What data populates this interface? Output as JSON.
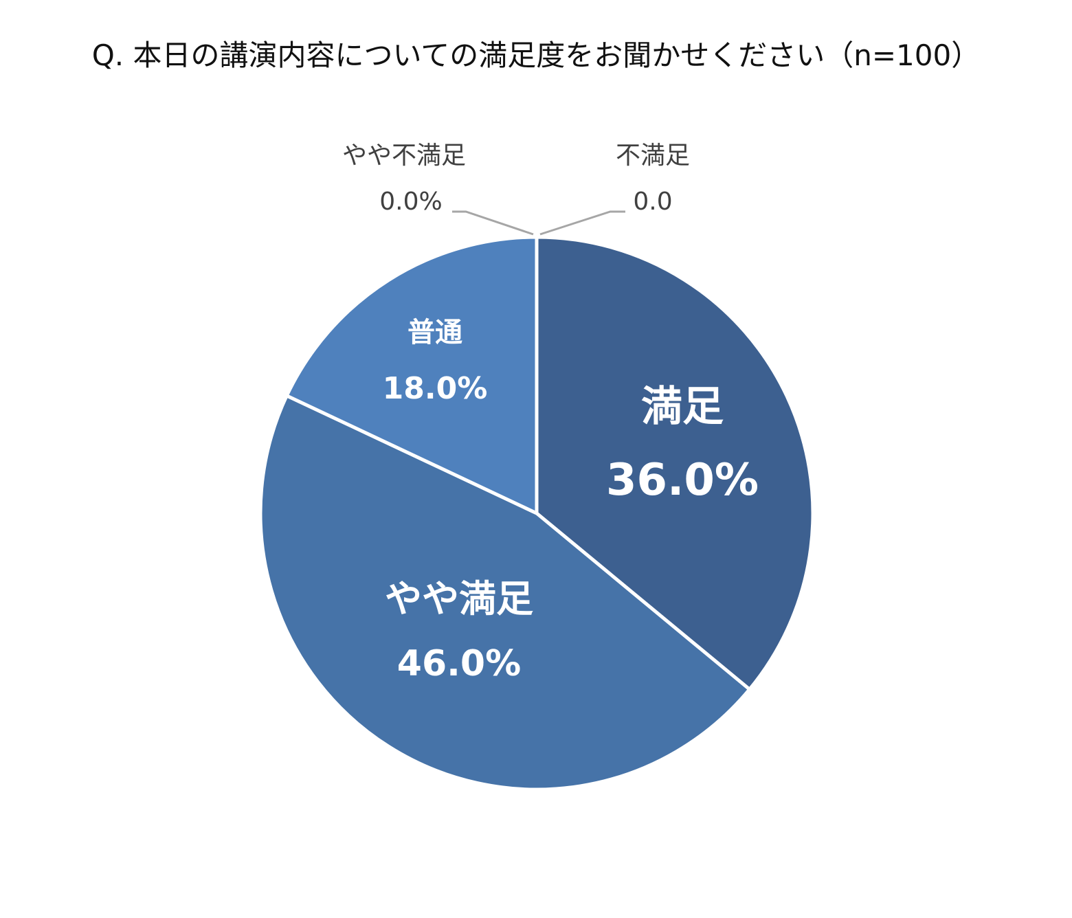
{
  "chart_data": {
    "type": "pie",
    "title": "Q. 本日の講演内容についての満足度をお聞かせください（n=100）",
    "slices": [
      {
        "label": "満足",
        "value": 36.0,
        "display": "36.0%",
        "color": "#3D6090"
      },
      {
        "label": "やや満足",
        "value": 46.0,
        "display": "46.0%",
        "color": "#4673A8"
      },
      {
        "label": "普通",
        "value": 18.0,
        "display": "18.0%",
        "color": "#4F81BD"
      },
      {
        "label": "やや不満足",
        "value": 0.0,
        "display": "0.0%",
        "color": "#A7B9D6"
      },
      {
        "label": "不満足",
        "value": 0.0,
        "display": "0.0",
        "color": "#C5D2E6"
      }
    ],
    "start": "12 o'clock",
    "direction": "clockwise",
    "legend": "none",
    "leader_line_color": "#A6A6A6"
  }
}
